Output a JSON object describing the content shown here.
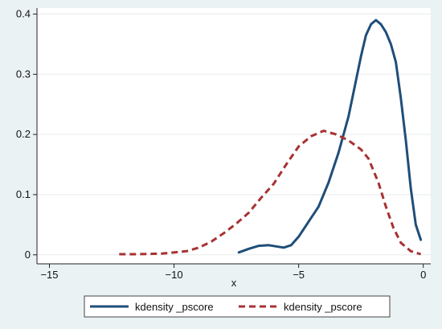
{
  "chart_data": {
    "type": "line",
    "title": "",
    "xlabel": "x",
    "ylabel": "",
    "xlim": [
      -15.5,
      0.3
    ],
    "ylim": [
      -0.015,
      0.41
    ],
    "x_ticks": [
      -15,
      -10,
      -5,
      0
    ],
    "x_tick_labels": [
      "−15",
      "−10",
      "−5",
      "0"
    ],
    "y_ticks": [
      0,
      0.1,
      0.2,
      0.3,
      0.4
    ],
    "y_tick_labels": [
      "0",
      "0.1",
      "0.2",
      "0.3",
      "0.4"
    ],
    "grid": true,
    "legend_position": "bottom",
    "series": [
      {
        "name": "kdensity _pscore",
        "color": "#1f4e79",
        "dash": "solid",
        "points": [
          [
            -7.4,
            0.004
          ],
          [
            -7.0,
            0.01
          ],
          [
            -6.6,
            0.015
          ],
          [
            -6.2,
            0.016
          ],
          [
            -5.9,
            0.014
          ],
          [
            -5.6,
            0.012
          ],
          [
            -5.3,
            0.016
          ],
          [
            -5.0,
            0.03
          ],
          [
            -4.6,
            0.055
          ],
          [
            -4.2,
            0.08
          ],
          [
            -3.8,
            0.12
          ],
          [
            -3.4,
            0.17
          ],
          [
            -3.0,
            0.23
          ],
          [
            -2.7,
            0.29
          ],
          [
            -2.5,
            0.33
          ],
          [
            -2.3,
            0.365
          ],
          [
            -2.1,
            0.383
          ],
          [
            -1.9,
            0.39
          ],
          [
            -1.7,
            0.383
          ],
          [
            -1.5,
            0.37
          ],
          [
            -1.3,
            0.35
          ],
          [
            -1.1,
            0.32
          ],
          [
            -0.9,
            0.26
          ],
          [
            -0.7,
            0.19
          ],
          [
            -0.5,
            0.11
          ],
          [
            -0.3,
            0.05
          ],
          [
            -0.1,
            0.025
          ]
        ]
      },
      {
        "name": "kdensity _pscore",
        "color": "#a83232",
        "dash": "dashed",
        "points": [
          [
            -12.2,
            0.001
          ],
          [
            -11.5,
            0.001
          ],
          [
            -10.5,
            0.002
          ],
          [
            -9.5,
            0.006
          ],
          [
            -9.0,
            0.012
          ],
          [
            -8.5,
            0.022
          ],
          [
            -8.0,
            0.036
          ],
          [
            -7.5,
            0.052
          ],
          [
            -7.0,
            0.07
          ],
          [
            -6.5,
            0.095
          ],
          [
            -6.0,
            0.118
          ],
          [
            -5.5,
            0.15
          ],
          [
            -5.0,
            0.18
          ],
          [
            -4.5,
            0.197
          ],
          [
            -4.0,
            0.206
          ],
          [
            -3.5,
            0.2
          ],
          [
            -3.0,
            0.19
          ],
          [
            -2.5,
            0.175
          ],
          [
            -2.2,
            0.16
          ],
          [
            -1.8,
            0.12
          ],
          [
            -1.5,
            0.08
          ],
          [
            -1.2,
            0.045
          ],
          [
            -0.9,
            0.02
          ],
          [
            -0.5,
            0.006
          ],
          [
            -0.1,
            0.001
          ]
        ]
      }
    ]
  }
}
